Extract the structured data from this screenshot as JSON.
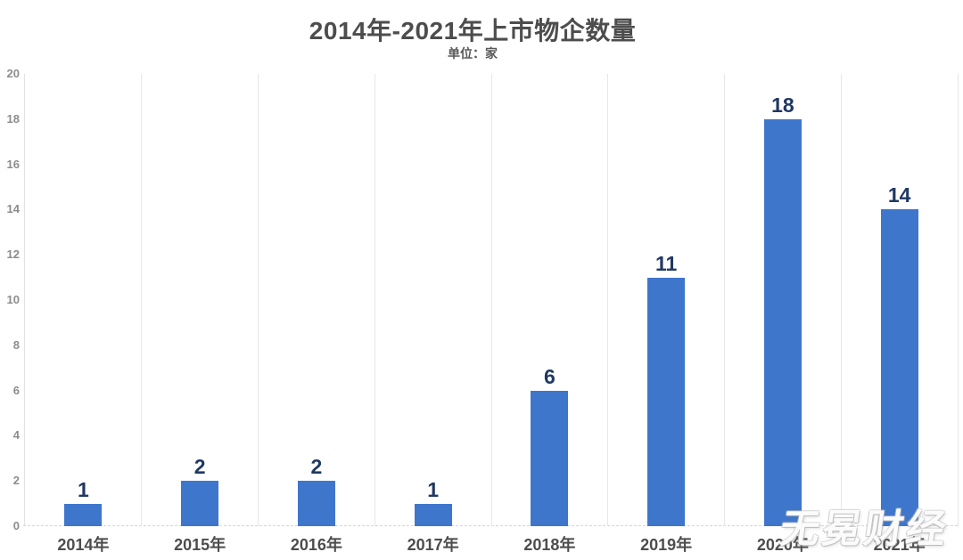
{
  "title": "2014年-2021年上市物企数量",
  "subtitle": "单位：家",
  "watermark": "无冕财经",
  "colors": {
    "bar": "#3e76cc",
    "value_label": "#1f3864",
    "title_text": "#4d4d4d",
    "subtitle_text": "#595959",
    "x_tick_label": "#4d4d4d",
    "y_tick_label": "#8c8c8c",
    "gridline": "#e7e7e7",
    "baseline": "#d6d6d6",
    "background": "#ffffff"
  },
  "chart_data": {
    "type": "bar",
    "title": "2014年-2021年上市物企数量",
    "subtitle": "单位：家",
    "categories": [
      "2014年",
      "2015年",
      "2016年",
      "2017年",
      "2018年",
      "2019年",
      "2020年",
      "2021年"
    ],
    "values": [
      1,
      2,
      2,
      1,
      6,
      11,
      18,
      14
    ],
    "xlabel": "",
    "ylabel": "",
    "ylim": [
      0,
      20
    ],
    "ytick_step": 2,
    "ytick_labels": [
      "0",
      "2",
      "4",
      "6",
      "8",
      "10",
      "12",
      "14",
      "16",
      "18",
      "20"
    ],
    "grid": "vertical-only",
    "baseline_style": "dashed",
    "legend": "none",
    "value_labels_shown": true
  }
}
